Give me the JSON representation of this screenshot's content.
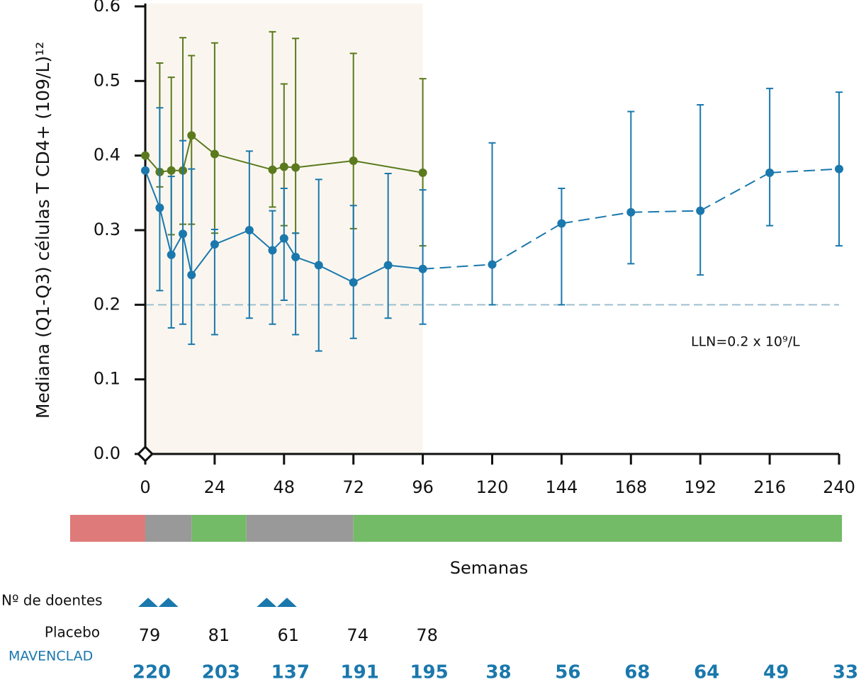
{
  "chart_data": {
    "type": "line",
    "ylabel": "Mediana (Q1-Q3) células T CD4+ (109/L)¹²",
    "xlabel": "Semanas",
    "xlim": [
      0,
      240
    ],
    "ylim": [
      0,
      0.6
    ],
    "xticks": [
      0,
      24,
      48,
      72,
      96,
      120,
      144,
      168,
      192,
      216,
      240
    ],
    "yticks": [
      {
        "value": 0,
        "label": "0.0"
      },
      0.1,
      0.2,
      0.3,
      0.4,
      0.5,
      0.6
    ],
    "shaded_xlim": [
      0,
      96
    ],
    "shade_color": "#faf6ef",
    "series": [
      {
        "name": "Placebo",
        "color": "#5b7a1e",
        "x": [
          0,
          5,
          9,
          13,
          16,
          24,
          44,
          48,
          52,
          72,
          96
        ],
        "values": [
          0.4,
          0.378,
          0.38,
          0.38,
          0.427,
          0.402,
          0.381,
          0.385,
          0.384,
          0.393,
          0.377
        ],
        "q1": [
          null,
          0.358,
          0.294,
          0.308,
          0.308,
          0.296,
          0.331,
          0.306,
          0.296,
          0.302,
          0.279
        ],
        "q3": [
          null,
          0.524,
          0.505,
          0.558,
          0.534,
          0.551,
          0.566,
          0.496,
          0.557,
          0.537,
          0.503
        ]
      },
      {
        "name": "MAVENCLAD",
        "color": "#1a78ad",
        "dash_from_x": 96,
        "x": [
          0,
          5,
          9,
          13,
          16,
          24,
          36,
          44,
          48,
          52,
          60,
          72,
          84,
          96,
          120,
          144,
          168,
          192,
          216,
          240
        ],
        "values": [
          0.38,
          0.33,
          0.267,
          0.295,
          0.24,
          0.281,
          0.3,
          0.273,
          0.289,
          0.264,
          0.253,
          0.23,
          0.253,
          0.248,
          0.254,
          0.309,
          0.324,
          0.326,
          0.377,
          0.382
        ],
        "q1": [
          null,
          0.219,
          0.169,
          0.174,
          0.147,
          0.16,
          0.182,
          0.174,
          0.206,
          0.16,
          0.138,
          0.155,
          0.182,
          0.174,
          0.2,
          0.2,
          0.255,
          0.24,
          0.306,
          0.279
        ],
        "q3": [
          null,
          0.464,
          0.372,
          0.42,
          0.382,
          0.301,
          0.406,
          0.326,
          0.356,
          0.296,
          0.368,
          0.333,
          0.376,
          0.354,
          0.417,
          0.356,
          0.459,
          0.468,
          0.49,
          0.485
        ]
      }
    ],
    "reference_line": {
      "value": 0.2,
      "label": "LLN=0.2 x 10⁹/L",
      "color": "#9dbfd0"
    },
    "periods": [
      {
        "start": -26,
        "end": 0,
        "color": "#df7a7a"
      },
      {
        "start": 0,
        "end": 16,
        "color": "#999999"
      },
      {
        "start": 16,
        "end": 35,
        "color": "#73bb67"
      },
      {
        "start": 35,
        "end": 72,
        "color": "#999999"
      },
      {
        "start": 72,
        "end": 241,
        "color": "#73bb67"
      }
    ],
    "dose_markers": [
      1,
      8,
      42,
      49
    ],
    "at_risk": {
      "title": "Nº de doentes",
      "x": [
        0,
        24,
        48,
        72,
        96,
        120,
        144,
        168,
        192,
        216,
        240
      ],
      "rows": [
        [
          79,
          81,
          61,
          74,
          78,
          null,
          null,
          null,
          null,
          null,
          null
        ],
        [
          220,
          203,
          137,
          191,
          195,
          38,
          56,
          68,
          64,
          49,
          33
        ]
      ]
    }
  }
}
